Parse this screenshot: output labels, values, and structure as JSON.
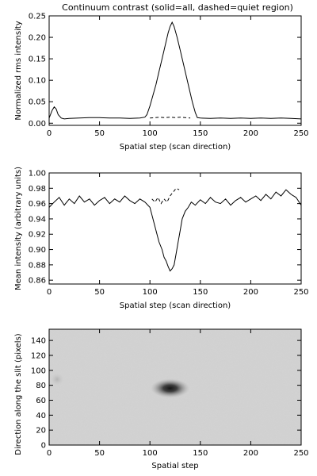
{
  "chart_data": [
    {
      "type": "line",
      "title": "Continuum contrast (solid=all, dashed=quiet region)",
      "xlabel": "Spatial step (scan direction)",
      "ylabel": "Normalized rms intensity",
      "xlim": [
        0,
        250
      ],
      "ylim": [
        -0.005,
        0.25
      ],
      "xticks": [
        0,
        50,
        100,
        150,
        200,
        250
      ],
      "yticks": [
        0.0,
        0.05,
        0.1,
        0.15,
        0.2,
        0.25
      ],
      "ytick_labels": [
        "0.00",
        "0.05",
        "0.10",
        "0.15",
        "0.20",
        "0.25"
      ],
      "series": [
        {
          "style": "solid",
          "x": [
            0,
            3,
            5,
            7,
            9,
            12,
            15,
            20,
            30,
            40,
            50,
            60,
            70,
            80,
            90,
            95,
            97,
            100,
            103,
            106,
            109,
            112,
            115,
            118,
            120,
            122,
            124,
            127,
            130,
            133,
            136,
            139,
            142,
            145,
            147,
            150,
            160,
            170,
            180,
            190,
            200,
            210,
            220,
            230,
            240,
            250
          ],
          "y": [
            0.012,
            0.03,
            0.038,
            0.033,
            0.02,
            0.012,
            0.01,
            0.011,
            0.012,
            0.013,
            0.013,
            0.012,
            0.012,
            0.011,
            0.012,
            0.014,
            0.02,
            0.04,
            0.065,
            0.09,
            0.12,
            0.15,
            0.18,
            0.21,
            0.225,
            0.235,
            0.225,
            0.2,
            0.17,
            0.14,
            0.11,
            0.08,
            0.05,
            0.025,
            0.013,
            0.012,
            0.011,
            0.012,
            0.011,
            0.012,
            0.011,
            0.012,
            0.011,
            0.012,
            0.011,
            0.01
          ]
        },
        {
          "style": "dashed",
          "x": [
            100,
            105,
            110,
            115,
            120,
            125,
            130,
            135,
            140
          ],
          "y": [
            0.012,
            0.013,
            0.014,
            0.013,
            0.014,
            0.013,
            0.014,
            0.013,
            0.012
          ]
        }
      ]
    },
    {
      "type": "line",
      "xlabel": "Spatial step (scan direction)",
      "ylabel": "Mean intensity (arbitrary units)",
      "xlim": [
        0,
        250
      ],
      "ylim": [
        0.855,
        1.0
      ],
      "xticks": [
        0,
        50,
        100,
        150,
        200,
        250
      ],
      "yticks": [
        0.86,
        0.88,
        0.9,
        0.92,
        0.94,
        0.96,
        0.98,
        1.0
      ],
      "ytick_labels": [
        "0.86",
        "0.88",
        "0.90",
        "0.92",
        "0.94",
        "0.96",
        "0.98",
        "1.00"
      ],
      "series": [
        {
          "style": "solid",
          "x": [
            0,
            5,
            10,
            15,
            20,
            25,
            30,
            35,
            40,
            45,
            50,
            55,
            60,
            65,
            70,
            75,
            80,
            85,
            90,
            95,
            100,
            103,
            106,
            109,
            112,
            114,
            116,
            118,
            120,
            122,
            124,
            126,
            128,
            130,
            132,
            135,
            138,
            141,
            145,
            150,
            155,
            160,
            165,
            170,
            175,
            180,
            185,
            190,
            195,
            200,
            205,
            210,
            215,
            220,
            225,
            230,
            235,
            240,
            245,
            250
          ],
          "y": [
            0.955,
            0.962,
            0.968,
            0.958,
            0.966,
            0.96,
            0.97,
            0.962,
            0.966,
            0.958,
            0.964,
            0.968,
            0.96,
            0.966,
            0.962,
            0.97,
            0.964,
            0.96,
            0.966,
            0.962,
            0.955,
            0.94,
            0.925,
            0.91,
            0.9,
            0.89,
            0.885,
            0.878,
            0.872,
            0.875,
            0.88,
            0.895,
            0.91,
            0.925,
            0.94,
            0.95,
            0.955,
            0.962,
            0.958,
            0.965,
            0.96,
            0.968,
            0.962,
            0.96,
            0.966,
            0.958,
            0.964,
            0.968,
            0.962,
            0.966,
            0.97,
            0.964,
            0.972,
            0.966,
            0.975,
            0.97,
            0.978,
            0.972,
            0.968,
            0.958
          ]
        },
        {
          "style": "dashed",
          "x": [
            102,
            105,
            108,
            111,
            114,
            117,
            120,
            123,
            126,
            129
          ],
          "y": [
            0.966,
            0.962,
            0.968,
            0.96,
            0.966,
            0.962,
            0.97,
            0.975,
            0.98,
            0.978
          ]
        }
      ]
    },
    {
      "type": "heatmap",
      "xlabel": "Spatial step",
      "ylabel": "Direction along the slit (pixels)",
      "xlim": [
        0,
        250
      ],
      "ylim": [
        0,
        155
      ],
      "xticks": [
        0,
        50,
        100,
        150,
        200,
        250
      ],
      "yticks": [
        0,
        20,
        40,
        60,
        80,
        100,
        120,
        140
      ],
      "ytick_labels": [
        "0",
        "20",
        "40",
        "60",
        "80",
        "100",
        "120",
        "140"
      ],
      "colormap": "grayscale",
      "features": [
        {
          "x": 120,
          "y": 76,
          "sx": 12,
          "sy": 8,
          "depth": 0.95
        },
        {
          "x": 8,
          "y": 88,
          "sx": 4,
          "sy": 5,
          "depth": 0.35
        }
      ]
    }
  ]
}
